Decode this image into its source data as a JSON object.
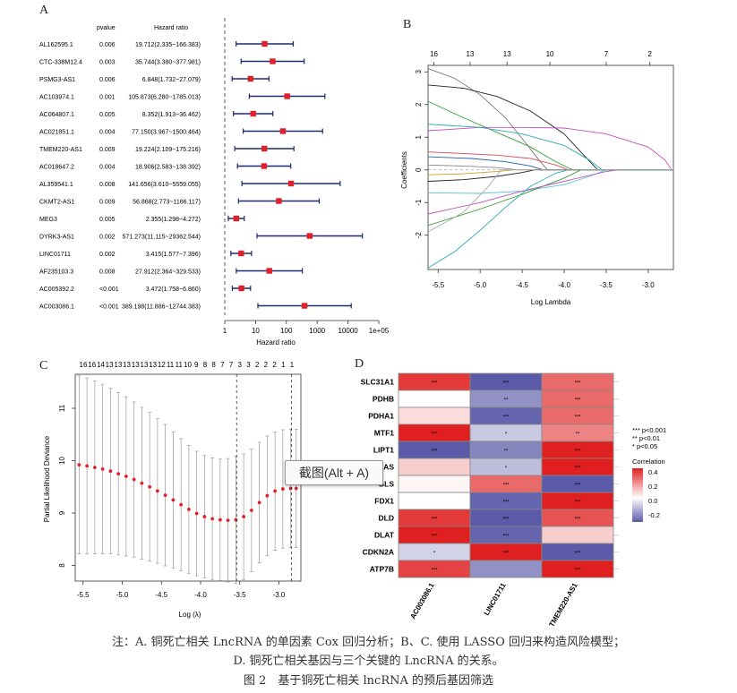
{
  "panelA": {
    "label": "A",
    "col_pvalue": "pvalue",
    "col_hr": "Hazard ratio",
    "xlabel": "Hazard ratio",
    "x_ticks": [
      "1",
      "10",
      "100",
      "1000",
      "10000",
      "1e+05"
    ],
    "x_tick_values": [
      1,
      10,
      100,
      1000,
      10000,
      100000
    ]
  },
  "panelB": {
    "label": "B",
    "xlabel": "Log Lambda",
    "ylabel": "Coefficients",
    "top_ticks": [
      "16",
      "13",
      "13",
      "10",
      "7",
      "2"
    ],
    "top_tick_x": [
      -5.55,
      -5.12,
      -4.68,
      -4.17,
      -3.5,
      -2.98
    ],
    "x_ticks": [
      "-5.5",
      "-5.0",
      "-4.5",
      "-4.0",
      "-3.5",
      "-3.0"
    ],
    "x_tick_values": [
      -5.5,
      -5.0,
      -4.5,
      -4.0,
      -3.5,
      -3.0
    ],
    "y_ticks": [
      "-2",
      "-1",
      "0",
      "1",
      "2",
      "3"
    ],
    "y_tick_values": [
      -2,
      -1,
      0,
      1,
      2,
      3
    ]
  },
  "panelC": {
    "label": "C",
    "xlabel": "Log (λ)",
    "ylabel": "Partial Likelihood Deviance",
    "top_ticks": [
      "16",
      "16",
      "14",
      "13",
      "13",
      "13",
      "13",
      "13",
      "13",
      "12",
      "11",
      "11",
      "10",
      "9",
      "8",
      "8",
      "7",
      "7",
      "3",
      "3",
      "2",
      "2",
      "2",
      "1",
      "1"
    ],
    "x_ticks": [
      "-5.5",
      "-5.0",
      "-4.5",
      "-4.0",
      "-3.5",
      "-3.0"
    ],
    "x_tick_values": [
      -5.5,
      -5.0,
      -4.5,
      -4.0,
      -3.5,
      -3.0
    ],
    "y_ticks": [
      "8",
      "9",
      "10",
      "11"
    ],
    "y_tick_values": [
      8,
      9,
      10,
      11
    ],
    "vline1": -3.54,
    "vline2": -2.84
  },
  "panelD": {
    "label": "D",
    "legend_sig": [
      "*** p<0.001",
      "** p<0.01",
      "* p<0.05"
    ],
    "legend_title": "Correlation",
    "legend_ticks": [
      "0.4",
      "0.2",
      "0.0",
      "-0.2"
    ],
    "legend_tick_values": [
      0.4,
      0.2,
      0.0,
      -0.2
    ]
  },
  "tooltip": "截图(Alt + A)",
  "caption_line1": "注：A. 铜死亡相关 LncRNA 的单因素 Cox 回归分析；B、C. 使用 LASSO 回归来构造风险模型；",
  "caption_line2": "D. 铜死亡相关基因与三个关键的 LncRNA 的关系。",
  "caption_line3": "图 2　基于铜死亡相关 lncRNA 的预后基因筛选",
  "chart_data": [
    {
      "type": "forest",
      "panel": "A",
      "xscale": "log10",
      "xlim": [
        1,
        100000
      ],
      "rows": [
        {
          "gene": "AL162595.1",
          "pvalue": "0.006",
          "hr_text": "19.712(2.335~166.383)",
          "hr": 19.712,
          "lo": 2.335,
          "hi": 166.383
        },
        {
          "gene": "CTC-338M12.4",
          "pvalue": "0.003",
          "hr_text": "35.744(3.380~377.981)",
          "hr": 35.744,
          "lo": 3.38,
          "hi": 377.981
        },
        {
          "gene": "PSMG3-AS1",
          "pvalue": "0.006",
          "hr_text": "6.848(1.732~27.079)",
          "hr": 6.848,
          "lo": 1.732,
          "hi": 27.079
        },
        {
          "gene": "AC103974.1",
          "pvalue": "0.001",
          "hr_text": "105.873(6.280~1785.013)",
          "hr": 105.873,
          "lo": 6.28,
          "hi": 1785.013
        },
        {
          "gene": "AC064807.1",
          "pvalue": "0.005",
          "hr_text": "8.352(1.913~36.462)",
          "hr": 8.352,
          "lo": 1.913,
          "hi": 36.462
        },
        {
          "gene": "AC021851.1",
          "pvalue": "0.004",
          "hr_text": "77.150(3.967~1500.464)",
          "hr": 77.15,
          "lo": 3.967,
          "hi": 1500.464
        },
        {
          "gene": "TMEM220-AS1",
          "pvalue": "0.009",
          "hr_text": "19.224(2.109~175.216)",
          "hr": 19.224,
          "lo": 2.109,
          "hi": 175.216
        },
        {
          "gene": "AC018647.2",
          "pvalue": "0.004",
          "hr_text": "18.906(2.583~138.392)",
          "hr": 18.906,
          "lo": 2.583,
          "hi": 138.392
        },
        {
          "gene": "AL359541.1",
          "pvalue": "0.008",
          "hr_text": "141.656(3.610~5559.055)",
          "hr": 141.656,
          "lo": 3.61,
          "hi": 5559.055
        },
        {
          "gene": "CKMT2-AS1",
          "pvalue": "0.009",
          "hr_text": "56.868(2.773~1166.117)",
          "hr": 56.868,
          "lo": 2.773,
          "hi": 1166.117
        },
        {
          "gene": "MEG3",
          "pvalue": "0.005",
          "hr_text": "2.355(1.298~4.272)",
          "hr": 2.355,
          "lo": 1.298,
          "hi": 4.272
        },
        {
          "gene": "DYRK3-AS1",
          "pvalue": "0.002",
          "hr_text": "571.273(11.115~29362.544)",
          "hr": 571.273,
          "lo": 11.115,
          "hi": 29362.544
        },
        {
          "gene": "LINC01711",
          "pvalue": "0.002",
          "hr_text": "3.415(1.577~7.396)",
          "hr": 3.415,
          "lo": 1.577,
          "hi": 7.396
        },
        {
          "gene": "AF235103.3",
          "pvalue": "0.008",
          "hr_text": "27.912(2.364~329.533)",
          "hr": 27.912,
          "lo": 2.364,
          "hi": 329.533
        },
        {
          "gene": "AC005392.2",
          "pvalue": "<0.001",
          "hr_text": "3.472(1.758~6.860)",
          "hr": 3.472,
          "lo": 1.758,
          "hi": 6.86
        },
        {
          "gene": "AC003086.1",
          "pvalue": "<0.001",
          "hr_text": "389.198(11.886~12744.383)",
          "hr": 389.198,
          "lo": 11.886,
          "hi": 12744.383
        }
      ]
    },
    {
      "type": "line",
      "panel": "B",
      "xlim": [
        -5.62,
        -2.7
      ],
      "ylim": [
        -3.05,
        3.2
      ],
      "series": [
        {
          "color": "#777777",
          "x": [
            -5.62,
            -5.3,
            -5.0,
            -4.7,
            -4.45,
            -4.3,
            -4.2
          ],
          "y": [
            3.1,
            2.8,
            2.3,
            1.6,
            0.8,
            0.3,
            0
          ]
        },
        {
          "color": "#222222",
          "x": [
            -5.62,
            -5.2,
            -4.8,
            -4.4,
            -4.0,
            -3.75,
            -3.6
          ],
          "y": [
            2.6,
            2.5,
            2.25,
            1.8,
            1.1,
            0.4,
            0
          ]
        },
        {
          "color": "#39a039",
          "x": [
            -5.62,
            -5.2,
            -4.8,
            -4.4,
            -4.1,
            -3.9
          ],
          "y": [
            2.1,
            1.6,
            1.15,
            0.7,
            0.25,
            0
          ]
        },
        {
          "color": "#c050c0",
          "x": [
            -5.62,
            -5.0,
            -4.5,
            -4.0,
            -3.5,
            -3.0,
            -2.8,
            -2.72
          ],
          "y": [
            1.2,
            1.3,
            1.3,
            1.28,
            1.1,
            0.7,
            0.3,
            0
          ]
        },
        {
          "color": "#2aa9b5",
          "x": [
            -5.62,
            -5.0,
            -4.5,
            -4.0,
            -3.7,
            -3.55
          ],
          "y": [
            1.4,
            1.3,
            1.1,
            0.75,
            0.3,
            0
          ]
        },
        {
          "color": "#d2525a",
          "x": [
            -5.62,
            -5.2,
            -4.8,
            -4.4,
            -4.1,
            -3.95
          ],
          "y": [
            0.55,
            0.5,
            0.45,
            0.35,
            0.15,
            0
          ]
        },
        {
          "color": "#1e5fa8",
          "x": [
            -5.62,
            -5.1,
            -4.7,
            -4.4,
            -4.25
          ],
          "y": [
            0.4,
            0.35,
            0.25,
            0.12,
            0
          ]
        },
        {
          "color": "#888888",
          "x": [
            -5.62,
            -5.2,
            -4.8,
            -4.55
          ],
          "y": [
            0.15,
            0.12,
            0.07,
            0
          ]
        },
        {
          "color": "#c9a020",
          "x": [
            -5.62,
            -5.2,
            -4.8,
            -4.6
          ],
          "y": [
            -0.15,
            -0.12,
            -0.05,
            0
          ]
        },
        {
          "color": "#222222",
          "x": [
            -5.62,
            -5.2,
            -4.8,
            -4.5,
            -4.35
          ],
          "y": [
            -0.35,
            -0.3,
            -0.2,
            -0.08,
            0
          ]
        },
        {
          "color": "#57c2d0",
          "x": [
            -5.62,
            -5.0,
            -4.5,
            -4.0,
            -3.7,
            -3.5
          ],
          "y": [
            -0.7,
            -0.72,
            -0.65,
            -0.45,
            -0.2,
            0
          ]
        },
        {
          "color": "#39a039",
          "x": [
            -5.62,
            -5.0,
            -4.5,
            -4.0,
            -3.8
          ],
          "y": [
            -1.7,
            -1.2,
            -0.75,
            -0.25,
            0
          ]
        },
        {
          "color": "#c050c0",
          "x": [
            -5.62,
            -5.0,
            -4.5,
            -4.0,
            -3.5,
            -3.35
          ],
          "y": [
            -1.35,
            -1.0,
            -0.65,
            -0.35,
            -0.05,
            0
          ]
        },
        {
          "color": "#2aa9b5",
          "x": [
            -5.62,
            -5.3,
            -5.0,
            -4.7,
            -4.4,
            -4.1,
            -3.95
          ],
          "y": [
            -3.0,
            -2.5,
            -1.85,
            -1.15,
            -0.5,
            -0.1,
            0
          ]
        },
        {
          "color": "#aaaaaa",
          "x": [
            -5.62,
            -5.2,
            -4.9,
            -4.75
          ],
          "y": [
            -1.9,
            -1.3,
            -0.5,
            0
          ]
        }
      ]
    },
    {
      "type": "scatter",
      "panel": "C",
      "xlim": [
        -5.6,
        -2.72
      ],
      "ylim": [
        7.7,
        11.65
      ],
      "x": [
        -5.55,
        -5.45,
        -5.35,
        -5.25,
        -5.15,
        -5.05,
        -4.95,
        -4.85,
        -4.75,
        -4.65,
        -4.55,
        -4.45,
        -4.35,
        -4.25,
        -4.15,
        -4.05,
        -3.95,
        -3.85,
        -3.75,
        -3.65,
        -3.55,
        -3.45,
        -3.35,
        -3.25,
        -3.15,
        -3.05,
        -2.95,
        -2.85,
        -2.78
      ],
      "y": [
        9.92,
        9.9,
        9.87,
        9.84,
        9.8,
        9.75,
        9.7,
        9.64,
        9.57,
        9.5,
        9.42,
        9.34,
        9.25,
        9.16,
        9.07,
        8.99,
        8.93,
        8.89,
        8.87,
        8.86,
        8.87,
        8.93,
        9.05,
        9.2,
        9.33,
        9.42,
        9.46,
        9.47,
        9.47
      ],
      "err": [
        1.7,
        1.68,
        1.65,
        1.62,
        1.58,
        1.55,
        1.52,
        1.48,
        1.45,
        1.42,
        1.38,
        1.35,
        1.3,
        1.26,
        1.22,
        1.19,
        1.17,
        1.16,
        1.16,
        1.18,
        1.22,
        1.2,
        1.17,
        1.15,
        1.14,
        1.13,
        1.13,
        1.13,
        1.13
      ]
    },
    {
      "type": "heatmap",
      "panel": "D",
      "rows": [
        "SLC31A1",
        "PDHB",
        "PDHA1",
        "MTF1",
        "LIPT1",
        "LIAS",
        "GLS",
        "FDX1",
        "DLD",
        "DLAT",
        "CDKN2A",
        "ATP7B"
      ],
      "columns": [
        "AC003086.1",
        "LINC01711",
        "TMEM220-AS1"
      ],
      "values": [
        [
          0.4,
          -0.3,
          0.3
        ],
        [
          0.0,
          -0.2,
          0.3
        ],
        [
          0.07,
          -0.28,
          0.3
        ],
        [
          0.45,
          -0.1,
          0.25
        ],
        [
          -0.3,
          -0.22,
          0.45
        ],
        [
          0.1,
          -0.12,
          0.45
        ],
        [
          0.02,
          0.3,
          -0.3
        ],
        [
          0.0,
          -0.28,
          0.45
        ],
        [
          0.4,
          -0.3,
          0.35
        ],
        [
          0.45,
          -0.28,
          0.1
        ],
        [
          -0.08,
          0.45,
          -0.32
        ],
        [
          0.38,
          -0.2,
          0.45
        ]
      ],
      "stars": [
        [
          "***",
          "***",
          "***"
        ],
        [
          "",
          "**",
          "***"
        ],
        [
          "",
          "***",
          "***"
        ],
        [
          "***",
          "*",
          "**"
        ],
        [
          "***",
          "**",
          "***"
        ],
        [
          "",
          "*",
          "***"
        ],
        [
          "",
          "***",
          "***"
        ],
        [
          "",
          "***",
          "***"
        ],
        [
          "***",
          "***",
          "***"
        ],
        [
          "***",
          "***",
          ""
        ],
        [
          "*",
          "***",
          "***"
        ],
        [
          "***",
          "",
          "***"
        ]
      ],
      "color_scale": {
        "low": "#5a5aa8",
        "mid": "#ffffff",
        "high": "#e02020",
        "range": [
          -0.3,
          0.45
        ]
      }
    }
  ]
}
